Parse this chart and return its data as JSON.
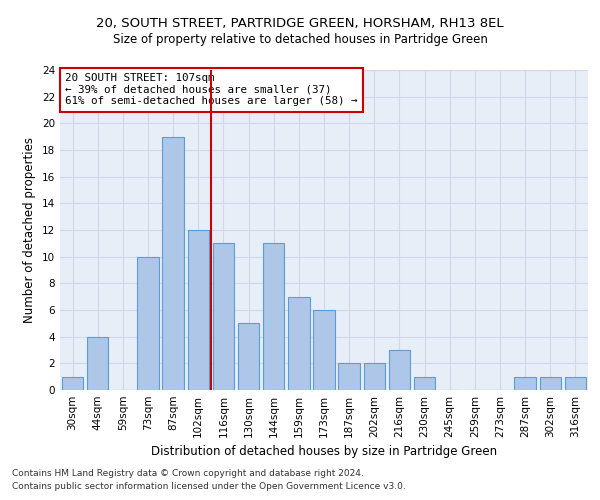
{
  "title1": "20, SOUTH STREET, PARTRIDGE GREEN, HORSHAM, RH13 8EL",
  "title2": "Size of property relative to detached houses in Partridge Green",
  "xlabel": "Distribution of detached houses by size in Partridge Green",
  "ylabel": "Number of detached properties",
  "categories": [
    "30sqm",
    "44sqm",
    "59sqm",
    "73sqm",
    "87sqm",
    "102sqm",
    "116sqm",
    "130sqm",
    "144sqm",
    "159sqm",
    "173sqm",
    "187sqm",
    "202sqm",
    "216sqm",
    "230sqm",
    "245sqm",
    "259sqm",
    "273sqm",
    "287sqm",
    "302sqm",
    "316sqm"
  ],
  "values": [
    1,
    4,
    0,
    10,
    19,
    12,
    11,
    5,
    11,
    7,
    6,
    2,
    2,
    3,
    1,
    0,
    0,
    0,
    1,
    1,
    1
  ],
  "bar_color": "#aec6e8",
  "bar_edge_color": "#5a9fd4",
  "grid_color": "#d0d8e8",
  "background_color": "#e8eef8",
  "vline_x": 5.5,
  "vline_color": "#cc0000",
  "annotation_text": "20 SOUTH STREET: 107sqm\n← 39% of detached houses are smaller (37)\n61% of semi-detached houses are larger (58) →",
  "annotation_box_color": "#ffffff",
  "annotation_box_edge_color": "#cc0000",
  "ylim": [
    0,
    24
  ],
  "yticks": [
    0,
    2,
    4,
    6,
    8,
    10,
    12,
    14,
    16,
    18,
    20,
    22,
    24
  ],
  "footer1": "Contains HM Land Registry data © Crown copyright and database right 2024.",
  "footer2": "Contains public sector information licensed under the Open Government Licence v3.0.",
  "title1_fontsize": 9.5,
  "title2_fontsize": 8.5,
  "xlabel_fontsize": 8.5,
  "ylabel_fontsize": 8.5,
  "tick_fontsize": 7.5,
  "footer_fontsize": 6.5
}
